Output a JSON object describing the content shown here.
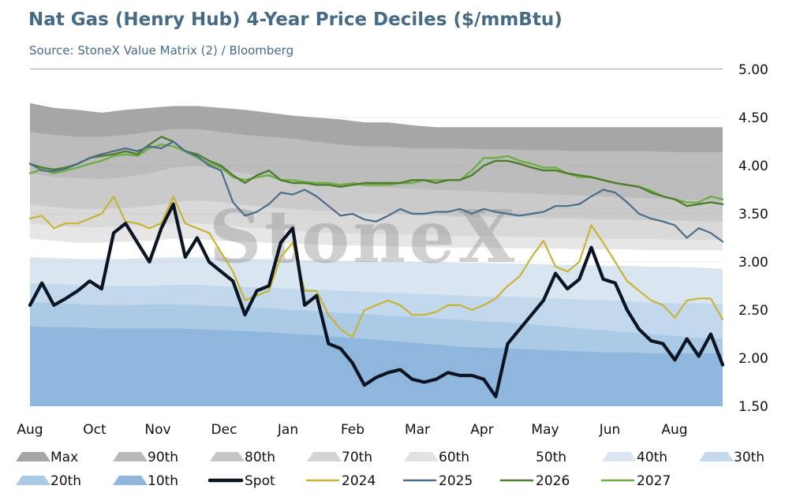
{
  "header": {
    "title": "Nat Gas (Henry Hub) 4-Year Price Deciles ($/mmBtu)",
    "subtitle": "Source: StoneX Value Matrix (2) / Bloomberg"
  },
  "watermark": "StoneX",
  "chart_data": {
    "type": "area",
    "title": "Nat Gas (Henry Hub) 4-Year Price Deciles ($/mmBtu)",
    "subtitle": "Source: StoneX Value Matrix (2) / Bloomberg",
    "x_tick_labels": [
      "Aug",
      "Oct",
      "Nov",
      "Dec",
      "Jan",
      "Feb",
      "Mar",
      "Apr",
      "May",
      "Jun",
      "Aug"
    ],
    "y_axis": {
      "side": "right",
      "ylim": [
        1.5,
        5.0
      ],
      "ticks": [
        "5.00",
        "4.50",
        "4.00",
        "3.50",
        "3.00",
        "2.50",
        "2.00",
        "1.50"
      ]
    },
    "grid": true,
    "legend_position": "bottom",
    "x_weeks": [
      0,
      2,
      4,
      6,
      8,
      10,
      12,
      14,
      16,
      18,
      20,
      22,
      24,
      26,
      28,
      30,
      32,
      34,
      36,
      38,
      40,
      42,
      44,
      46,
      48,
      50,
      52,
      54,
      56,
      58
    ],
    "deciles": {
      "stack_order": [
        "10th",
        "20th",
        "30th",
        "40th",
        "50th",
        "60th",
        "70th",
        "80th",
        "90th",
        "Max"
      ],
      "colors": {
        "Max": "#a6a6a6",
        "90th": "#bcbcbc",
        "80th": "#cacaca",
        "70th": "#d9d9d9",
        "60th": "#e6e6e6",
        "50th": "#ffffff",
        "40th": "#d9e6f2",
        "30th": "#c2d8ec",
        "20th": "#abcae5",
        "10th": "#8fb6dd"
      },
      "series": [
        {
          "name": "Max",
          "values": [
            4.65,
            4.6,
            4.58,
            4.55,
            4.58,
            4.6,
            4.62,
            4.62,
            4.6,
            4.58,
            4.55,
            4.52,
            4.5,
            4.48,
            4.45,
            4.45,
            4.42,
            4.4,
            4.4,
            4.4,
            4.4,
            4.4,
            4.4,
            4.4,
            4.4,
            4.4,
            4.4,
            4.4,
            4.4,
            4.4
          ]
        },
        {
          "name": "90th",
          "values": [
            4.35,
            4.32,
            4.3,
            4.3,
            4.32,
            4.35,
            4.38,
            4.38,
            4.35,
            4.32,
            4.3,
            4.28,
            4.25,
            4.22,
            4.2,
            4.2,
            4.18,
            4.18,
            4.18,
            4.17,
            4.17,
            4.16,
            4.16,
            4.15,
            4.15,
            4.15,
            4.15,
            4.14,
            4.14,
            4.14
          ]
        },
        {
          "name": "80th",
          "values": [
            3.92,
            3.88,
            3.87,
            3.86,
            3.88,
            3.92,
            3.98,
            4.0,
            3.96,
            3.92,
            3.88,
            3.85,
            3.82,
            3.8,
            3.78,
            3.77,
            3.76,
            3.75,
            3.74,
            3.73,
            3.72,
            3.71,
            3.7,
            3.69,
            3.68,
            3.67,
            3.66,
            3.65,
            3.64,
            3.63
          ]
        },
        {
          "name": "70th",
          "values": [
            3.6,
            3.57,
            3.55,
            3.55,
            3.56,
            3.58,
            3.62,
            3.64,
            3.62,
            3.59,
            3.57,
            3.55,
            3.53,
            3.52,
            3.51,
            3.5,
            3.49,
            3.48,
            3.47,
            3.47,
            3.46,
            3.46,
            3.45,
            3.45,
            3.44,
            3.44,
            3.43,
            3.43,
            3.42,
            3.42
          ]
        },
        {
          "name": "60th",
          "values": [
            3.4,
            3.38,
            3.36,
            3.36,
            3.37,
            3.38,
            3.4,
            3.4,
            3.38,
            3.36,
            3.34,
            3.32,
            3.31,
            3.3,
            3.29,
            3.29,
            3.28,
            3.28,
            3.27,
            3.27,
            3.26,
            3.26,
            3.25,
            3.25,
            3.24,
            3.24,
            3.24,
            3.23,
            3.23,
            3.23
          ]
        },
        {
          "name": "50th",
          "values": [
            3.24,
            3.22,
            3.2,
            3.2,
            3.21,
            3.22,
            3.24,
            3.24,
            3.22,
            3.21,
            3.2,
            3.19,
            3.18,
            3.17,
            3.17,
            3.16,
            3.16,
            3.15,
            3.15,
            3.15,
            3.14,
            3.14,
            3.14,
            3.13,
            3.13,
            3.13,
            3.12,
            3.12,
            3.12,
            3.12
          ]
        },
        {
          "name": "40th",
          "values": [
            3.05,
            3.04,
            3.03,
            3.03,
            3.03,
            3.04,
            3.05,
            3.05,
            3.04,
            3.03,
            3.03,
            3.02,
            3.02,
            3.01,
            3.01,
            3.0,
            3.0,
            3.0,
            2.99,
            2.99,
            2.98,
            2.98,
            2.97,
            2.97,
            2.96,
            2.96,
            2.95,
            2.95,
            2.94,
            2.93
          ]
        },
        {
          "name": "30th",
          "values": [
            2.78,
            2.77,
            2.76,
            2.75,
            2.75,
            2.75,
            2.76,
            2.76,
            2.75,
            2.74,
            2.73,
            2.72,
            2.71,
            2.7,
            2.69,
            2.68,
            2.67,
            2.66,
            2.65,
            2.64,
            2.64,
            2.63,
            2.62,
            2.61,
            2.6,
            2.59,
            2.58,
            2.57,
            2.57,
            2.56
          ]
        },
        {
          "name": "20th",
          "values": [
            2.58,
            2.57,
            2.56,
            2.55,
            2.55,
            2.56,
            2.56,
            2.55,
            2.54,
            2.53,
            2.52,
            2.5,
            2.49,
            2.47,
            2.46,
            2.44,
            2.43,
            2.41,
            2.4,
            2.38,
            2.37,
            2.35,
            2.33,
            2.31,
            2.29,
            2.27,
            2.25,
            2.23,
            2.21,
            2.2
          ]
        },
        {
          "name": "10th",
          "values": [
            2.33,
            2.32,
            2.32,
            2.31,
            2.31,
            2.31,
            2.31,
            2.3,
            2.29,
            2.28,
            2.27,
            2.25,
            2.24,
            2.22,
            2.2,
            2.18,
            2.16,
            2.14,
            2.12,
            2.11,
            2.1,
            2.09,
            2.08,
            2.07,
            2.06,
            2.06,
            2.05,
            2.05,
            2.05,
            2.05
          ]
        }
      ]
    },
    "lines": [
      {
        "name": "Spot",
        "color": "#0b1423",
        "width": 4.2,
        "x": [
          0,
          1,
          2,
          3,
          4,
          5,
          6,
          7,
          8,
          9,
          10,
          11,
          12,
          13,
          14,
          15,
          16,
          17,
          18,
          19,
          20,
          21,
          22,
          23,
          24,
          25,
          26,
          27,
          28,
          29,
          30,
          31,
          32,
          33,
          34,
          35,
          36,
          37,
          38,
          39,
          40,
          41,
          42,
          43,
          44,
          45,
          46,
          47,
          48,
          49,
          50,
          51,
          52,
          53,
          54,
          55,
          56,
          57,
          58
        ],
        "y": [
          2.55,
          2.78,
          2.55,
          2.62,
          2.7,
          2.8,
          2.72,
          3.3,
          3.4,
          3.2,
          3.0,
          3.35,
          3.6,
          3.05,
          3.25,
          3.0,
          2.9,
          2.8,
          2.45,
          2.7,
          2.75,
          3.2,
          3.35,
          2.55,
          2.65,
          2.15,
          2.1,
          1.95,
          1.72,
          1.8,
          1.85,
          1.88,
          1.78,
          1.75,
          1.78,
          1.85,
          1.82,
          1.82,
          1.78,
          1.6,
          2.15,
          2.3,
          2.45,
          2.6,
          2.88,
          2.72,
          2.82,
          3.15,
          2.82,
          2.78,
          2.5,
          2.3,
          2.18,
          2.15,
          1.98,
          2.2,
          2.02,
          2.25,
          1.93
        ]
      },
      {
        "name": "2024",
        "color": "#c9b335",
        "width": 2.2,
        "x": [
          0,
          1,
          2,
          3,
          4,
          5,
          6,
          7,
          8,
          9,
          10,
          11,
          12,
          13,
          14,
          15,
          16,
          17,
          18,
          19,
          20,
          21,
          22,
          23,
          24,
          25,
          26,
          27,
          28,
          29,
          30,
          31,
          32,
          33,
          34,
          35,
          36,
          37,
          38,
          39,
          40,
          41,
          42,
          43,
          44,
          45,
          46,
          47,
          48,
          49,
          50,
          51,
          52,
          53,
          54,
          55,
          56,
          57,
          58
        ],
        "y": [
          3.45,
          3.48,
          3.35,
          3.4,
          3.4,
          3.45,
          3.5,
          3.68,
          3.42,
          3.4,
          3.35,
          3.4,
          3.68,
          3.4,
          3.35,
          3.3,
          3.1,
          2.9,
          2.6,
          2.65,
          2.7,
          3.05,
          3.2,
          2.7,
          2.7,
          2.45,
          2.3,
          2.22,
          2.5,
          2.55,
          2.6,
          2.55,
          2.45,
          2.45,
          2.48,
          2.55,
          2.55,
          2.5,
          2.55,
          2.62,
          2.75,
          2.85,
          3.05,
          3.22,
          2.95,
          2.9,
          3.0,
          3.38,
          3.2,
          3.0,
          2.8,
          2.7,
          2.6,
          2.55,
          2.42,
          2.6,
          2.62,
          2.62,
          2.4
        ]
      },
      {
        "name": "2025",
        "color": "#4a6d88",
        "width": 2.2,
        "x": [
          0,
          1,
          2,
          3,
          4,
          5,
          6,
          7,
          8,
          9,
          10,
          11,
          12,
          13,
          14,
          15,
          16,
          17,
          18,
          19,
          20,
          21,
          22,
          23,
          24,
          25,
          26,
          27,
          28,
          29,
          30,
          31,
          32,
          33,
          34,
          35,
          36,
          37,
          38,
          39,
          40,
          41,
          42,
          43,
          44,
          45,
          46,
          47,
          48,
          49,
          50,
          51,
          52,
          53,
          54,
          55,
          56,
          57,
          58
        ],
        "y": [
          4.02,
          3.95,
          3.94,
          3.97,
          4.02,
          4.08,
          4.12,
          4.15,
          4.18,
          4.15,
          4.2,
          4.18,
          4.25,
          4.15,
          4.1,
          4.0,
          3.95,
          3.62,
          3.48,
          3.52,
          3.6,
          3.72,
          3.7,
          3.75,
          3.68,
          3.58,
          3.48,
          3.5,
          3.44,
          3.42,
          3.48,
          3.55,
          3.5,
          3.5,
          3.52,
          3.52,
          3.55,
          3.5,
          3.55,
          3.52,
          3.5,
          3.48,
          3.5,
          3.52,
          3.58,
          3.58,
          3.6,
          3.68,
          3.75,
          3.72,
          3.62,
          3.5,
          3.45,
          3.42,
          3.38,
          3.25,
          3.35,
          3.3,
          3.21
        ]
      },
      {
        "name": "2026",
        "color": "#4f7d2f",
        "width": 2.4,
        "x": [
          0,
          1,
          2,
          3,
          4,
          5,
          6,
          7,
          8,
          9,
          10,
          11,
          12,
          13,
          14,
          15,
          16,
          17,
          18,
          19,
          20,
          21,
          22,
          23,
          24,
          25,
          26,
          27,
          28,
          29,
          30,
          31,
          32,
          33,
          34,
          35,
          36,
          37,
          38,
          39,
          40,
          41,
          42,
          43,
          44,
          45,
          46,
          47,
          48,
          49,
          50,
          51,
          52,
          53,
          54,
          55,
          56,
          57,
          58
        ],
        "y": [
          4.02,
          3.98,
          3.96,
          3.98,
          4.02,
          4.08,
          4.1,
          4.12,
          4.15,
          4.12,
          4.22,
          4.3,
          4.25,
          4.15,
          4.12,
          4.05,
          4.0,
          3.9,
          3.82,
          3.9,
          3.95,
          3.85,
          3.82,
          3.82,
          3.8,
          3.8,
          3.78,
          3.8,
          3.82,
          3.82,
          3.82,
          3.82,
          3.85,
          3.85,
          3.82,
          3.85,
          3.85,
          3.9,
          4.0,
          4.05,
          4.05,
          4.02,
          3.98,
          3.95,
          3.95,
          3.92,
          3.9,
          3.88,
          3.85,
          3.82,
          3.8,
          3.78,
          3.72,
          3.68,
          3.65,
          3.58,
          3.6,
          3.62,
          3.6
        ]
      },
      {
        "name": "2027",
        "color": "#6fae45",
        "width": 2.4,
        "x": [
          0,
          1,
          2,
          3,
          4,
          5,
          6,
          7,
          8,
          9,
          10,
          11,
          12,
          13,
          14,
          15,
          16,
          17,
          18,
          19,
          20,
          21,
          22,
          23,
          24,
          25,
          26,
          27,
          28,
          29,
          30,
          31,
          32,
          33,
          34,
          35,
          36,
          37,
          38,
          39,
          40,
          41,
          42,
          43,
          44,
          45,
          46,
          47,
          48,
          49,
          50,
          51,
          52,
          53,
          54,
          55,
          56,
          57,
          58
        ],
        "y": [
          3.92,
          3.96,
          3.92,
          3.95,
          3.98,
          4.02,
          4.05,
          4.1,
          4.12,
          4.1,
          4.18,
          4.22,
          4.2,
          4.15,
          4.08,
          4.02,
          3.98,
          3.88,
          3.85,
          3.88,
          3.9,
          3.85,
          3.85,
          3.83,
          3.82,
          3.82,
          3.8,
          3.82,
          3.8,
          3.8,
          3.8,
          3.82,
          3.82,
          3.85,
          3.85,
          3.85,
          3.85,
          3.95,
          4.08,
          4.08,
          4.1,
          4.05,
          4.02,
          3.98,
          3.98,
          3.92,
          3.88,
          3.88,
          3.85,
          3.82,
          3.8,
          3.78,
          3.74,
          3.68,
          3.65,
          3.62,
          3.62,
          3.68,
          3.65
        ]
      }
    ],
    "legend": [
      {
        "label": "Max",
        "kind": "area",
        "color": "#a6a6a6"
      },
      {
        "label": "90th",
        "kind": "area",
        "color": "#b8b8b8"
      },
      {
        "label": "80th",
        "kind": "area",
        "color": "#c6c6c6"
      },
      {
        "label": "70th",
        "kind": "area",
        "color": "#d4d4d4"
      },
      {
        "label": "60th",
        "kind": "area",
        "color": "#e2e2e2"
      },
      {
        "label": "50th",
        "kind": "area",
        "color": "#ffffff"
      },
      {
        "label": "40th",
        "kind": "area",
        "color": "#d9e6f2"
      },
      {
        "label": "30th",
        "kind": "area",
        "color": "#c2d8ec"
      },
      {
        "label": "20th",
        "kind": "area",
        "color": "#abcae5"
      },
      {
        "label": "10th",
        "kind": "area",
        "color": "#8fb6dd"
      },
      {
        "label": "Spot",
        "kind": "line",
        "color": "#0b1423"
      },
      {
        "label": "2024",
        "kind": "line",
        "color": "#c9b335"
      },
      {
        "label": "2025",
        "kind": "line",
        "color": "#4a6d88"
      },
      {
        "label": "2026",
        "kind": "line",
        "color": "#4f7d2f"
      },
      {
        "label": "2027",
        "kind": "line",
        "color": "#6fae45"
      }
    ]
  }
}
